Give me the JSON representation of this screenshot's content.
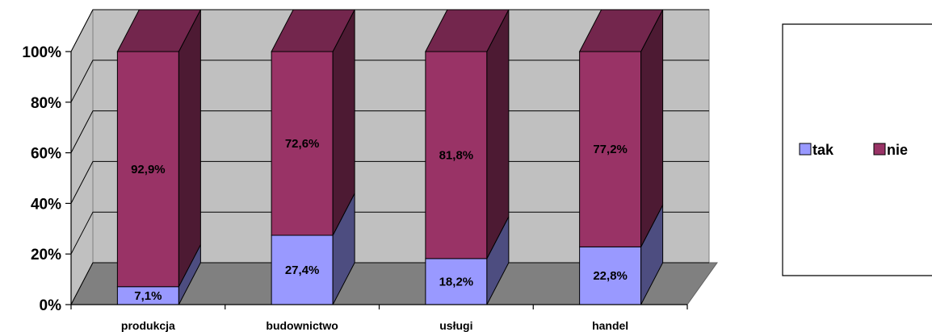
{
  "chart_data": {
    "type": "bar",
    "stacked": true,
    "percent": true,
    "three_d": true,
    "categories": [
      "produkcja",
      "budownictwo",
      "usługi",
      "handel"
    ],
    "series": [
      {
        "name": "tak",
        "values": [
          7.1,
          27.4,
          18.2,
          22.8
        ],
        "labels": [
          "7,1%",
          "27,4%",
          "18,2%",
          "22,8%"
        ],
        "color": "#9999ff"
      },
      {
        "name": "nie",
        "values": [
          92.9,
          72.6,
          81.8,
          77.2
        ],
        "labels": [
          "92,9%",
          "72,6%",
          "81,8%",
          "77,2%"
        ],
        "color": "#993366"
      }
    ],
    "yticks": [
      "0%",
      "20%",
      "40%",
      "60%",
      "80%",
      "100%"
    ],
    "ylim": [
      0,
      100
    ],
    "grid": true,
    "legend_position": "right",
    "colors": {
      "wall": "#c0c0c0",
      "floor": "#808080",
      "grid": "#000000"
    }
  }
}
